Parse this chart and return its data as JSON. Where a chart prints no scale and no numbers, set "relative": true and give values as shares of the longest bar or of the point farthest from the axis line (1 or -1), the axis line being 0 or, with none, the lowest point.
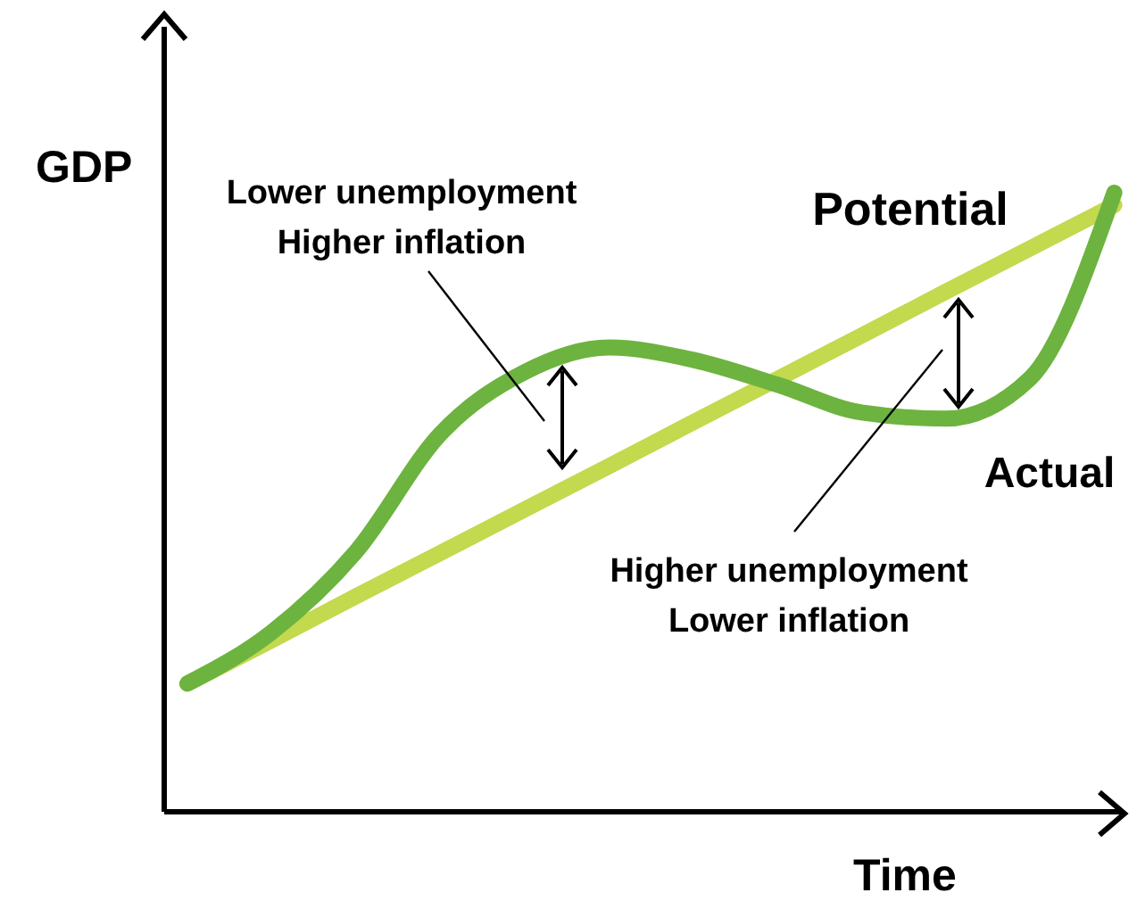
{
  "chart_data": {
    "type": "line",
    "relative": true,
    "xlabel": "Time",
    "ylabel": "GDP",
    "marker": "none",
    "line_style": "solid",
    "categories": [
      null,
      null,
      null,
      null,
      null,
      null,
      null,
      null,
      null,
      null,
      null,
      null
    ],
    "series": [
      {
        "name": "Potential",
        "color": "#c3d94e",
        "values": [
          0.207,
          0.277,
          0.348,
          0.418,
          0.488,
          0.558,
          0.629,
          0.699,
          0.769,
          0.84,
          0.91,
          0.98
        ]
      },
      {
        "name": "Actual",
        "color": "#6db33f",
        "values": [
          0.207,
          0.29,
          0.42,
          0.61,
          0.71,
          0.75,
          0.73,
          0.69,
          0.645,
          0.635,
          0.7,
          1.0
        ]
      }
    ],
    "annotations": [
      "Lower unemployment\nHigher inflation",
      "Higher unemployment\nLower inflation"
    ]
  }
}
